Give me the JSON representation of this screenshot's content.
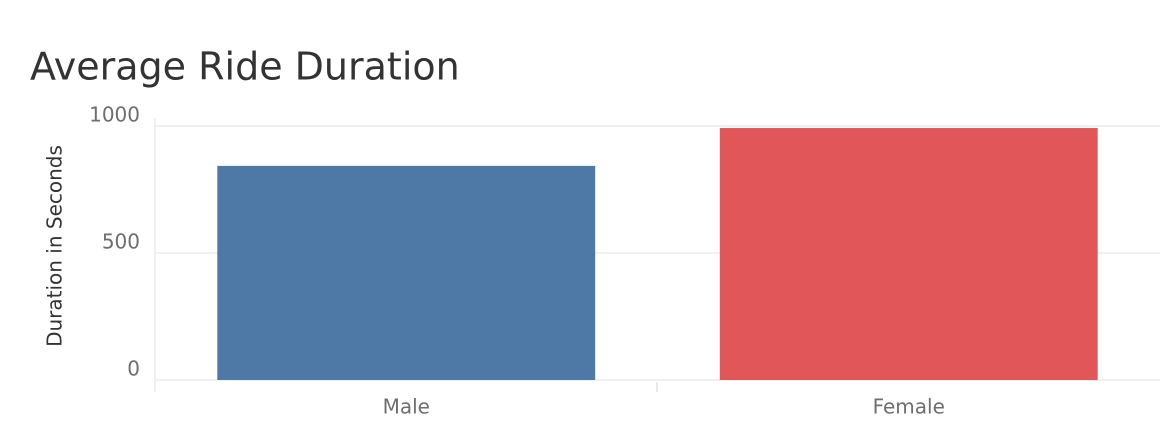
{
  "chart_data": {
    "type": "bar",
    "title": "Average Ride Duration",
    "y_label": "Duration in Seconds",
    "categories": [
      "Male",
      "Female"
    ],
    "values": [
      843,
      992
    ],
    "colors": [
      "#4e79a7",
      "#e15759"
    ],
    "ylim": [
      0,
      1000
    ],
    "yticks": [
      0,
      500,
      1000
    ],
    "grid": true
  }
}
